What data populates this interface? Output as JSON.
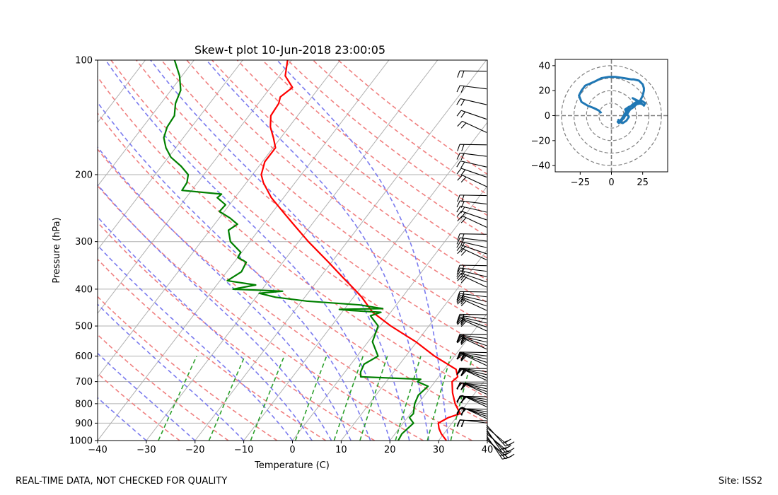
{
  "figure": {
    "footer_left": "REAL-TIME DATA, NOT CHECKED FOR QUALITY",
    "footer_right": "Site: ISS2"
  },
  "chart_data": [
    {
      "type": "line",
      "subtype": "skew-t",
      "title": "Skew-t plot 10-Jun-2018 23:00:05",
      "xlabel": "Temperature (C)",
      "ylabel": "Pressure (hPa)",
      "xlim": [
        -40,
        40
      ],
      "ylim": [
        1000,
        100
      ],
      "yscale": "log",
      "x_ticks": [
        -40,
        -30,
        -20,
        -10,
        0,
        10,
        20,
        30,
        40
      ],
      "x_tick_labels": [
        "−40",
        "−30",
        "−20",
        "−10",
        "0",
        "10",
        "20",
        "30",
        "40"
      ],
      "y_ticks": [
        1000,
        900,
        800,
        700,
        600,
        500,
        400,
        300,
        200,
        100
      ],
      "grid": true,
      "colors": {
        "temperature": "#ff0000",
        "dewpoint": "#008000",
        "dry_adiabats": "#f08080",
        "moist_adiabats": "#7b7bef",
        "mixing_ratio": "#2ca02c",
        "isotherms": "#b0b0b0",
        "barbs": "#000000"
      },
      "series": [
        {
          "name": "",
          "kind": "temperature",
          "pressure": [
            1000,
            960,
            930,
            900,
            870,
            850,
            800,
            750,
            700,
            680,
            650,
            600,
            550,
            500,
            460,
            420,
            400,
            370,
            340,
            300,
            270,
            250,
            230,
            210,
            200,
            185,
            170,
            160,
            150,
            140,
            130,
            125,
            118,
            110,
            100
          ],
          "temperature": [
            31.6,
            29.5,
            28.2,
            27.2,
            28.4,
            30.2,
            27.6,
            25.4,
            23.5,
            23.9,
            22.4,
            15.9,
            9.8,
            2.2,
            -3.7,
            -8.3,
            -11.1,
            -15.7,
            -20.6,
            -28.0,
            -33.8,
            -38.0,
            -42.5,
            -46.5,
            -48.2,
            -49.5,
            -49.5,
            -51.5,
            -53.8,
            -55.5,
            -55.8,
            -56.5,
            -55.5,
            -58.8,
            -60.8
          ]
        },
        {
          "name": "",
          "kind": "dewpoint",
          "pressure": [
            1000,
            960,
            900,
            870,
            850,
            800,
            760,
            720,
            700,
            690,
            680,
            660,
            630,
            600,
            550,
            500,
            470,
            460,
            455,
            452,
            450,
            440,
            430,
            420,
            410,
            405,
            400,
            390,
            380,
            360,
            340,
            330,
            320,
            300,
            280,
            270,
            260,
            250,
            240,
            230,
            225,
            220,
            210,
            200,
            190,
            180,
            170,
            160,
            150,
            140,
            130,
            120,
            110,
            100
          ],
          "temperature": [
            21.7,
            21.4,
            22.1,
            20.4,
            20.6,
            19.3,
            18.7,
            19.3,
            16.4,
            16.7,
            4.0,
            3.2,
            2.7,
            4.3,
            0.9,
            -0.4,
            -3.6,
            -2.0,
            -8.5,
            -11.0,
            -2.2,
            -7.5,
            -19.0,
            -26.0,
            -30.0,
            -25.5,
            -36.0,
            -32.0,
            -38.5,
            -37.0,
            -37.5,
            -40.0,
            -40.2,
            -44.0,
            -46.2,
            -45.3,
            -47.8,
            -51.0,
            -50.8,
            -53.6,
            -53.3,
            -62.0,
            -62.2,
            -63.2,
            -66.0,
            -69.5,
            -72.0,
            -74.0,
            -75.0,
            -75.3,
            -77.0,
            -78.0,
            -80.5,
            -84.0
          ]
        }
      ]
    },
    {
      "type": "line",
      "subtype": "hodograph",
      "xlim": [
        -45,
        45
      ],
      "ylim": [
        -45,
        45
      ],
      "x_ticks": [
        -25,
        0,
        25
      ],
      "x_tick_labels": [
        "−25",
        "0",
        "25"
      ],
      "y_ticks": [
        -40,
        -20,
        0,
        20,
        40
      ],
      "y_tick_labels": [
        "−40",
        "−20",
        "0",
        "20",
        "40"
      ],
      "range_rings": [
        10,
        20,
        30,
        40
      ],
      "colors": {
        "trace": "#1f77b4",
        "rings": "#808080"
      },
      "series": [
        {
          "name": "",
          "u": [
            5,
            7,
            9,
            12,
            14,
            12,
            11,
            14,
            17,
            20,
            24,
            21,
            17,
            20,
            22,
            25,
            26,
            27,
            24,
            21,
            18,
            15,
            13,
            11,
            10,
            8,
            7,
            6,
            5,
            8,
            11,
            14,
            17,
            20,
            23,
            25,
            26,
            26,
            25,
            22,
            18,
            16,
            10,
            3,
            -2,
            -8,
            -14,
            -21,
            -24,
            -26,
            -24,
            -19,
            -14,
            -10,
            -8
          ],
          "v": [
            -3,
            -5,
            -6,
            -4,
            -1,
            2,
            5,
            7,
            8,
            9,
            10,
            12,
            14,
            12,
            10,
            9,
            8,
            10,
            12,
            10,
            7,
            5,
            2,
            0,
            -2,
            -4,
            -5,
            -6,
            -5,
            -3,
            2,
            6,
            9,
            11,
            12,
            16,
            20,
            22,
            25,
            28,
            29,
            29,
            30,
            31,
            31,
            30,
            27,
            24,
            20,
            16,
            11,
            8,
            6,
            4,
            2
          ]
        }
      ]
    }
  ]
}
